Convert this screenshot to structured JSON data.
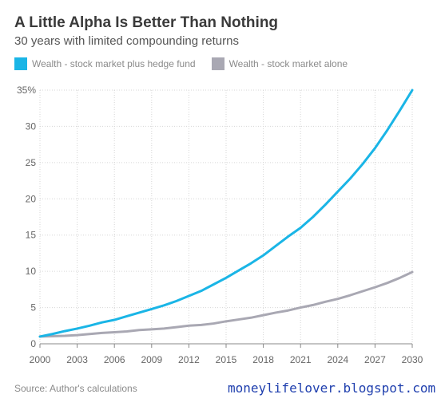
{
  "chart_data": {
    "type": "line",
    "title": "A Little Alpha Is Better Than Nothing",
    "subtitle": "30 years with limited compounding returns",
    "xlim": [
      2000,
      2030
    ],
    "ylim": [
      0,
      35
    ],
    "x_ticks": [
      "2000",
      "2003",
      "2006",
      "2009",
      "2012",
      "2015",
      "2018",
      "2021",
      "2024",
      "2027",
      "2030"
    ],
    "y_ticks": [
      "0",
      "5",
      "10",
      "15",
      "20",
      "25",
      "30",
      "35%"
    ],
    "grid": true,
    "legend_position": "top-left",
    "series": [
      {
        "name": "Wealth - stock market plus hedge fund",
        "color": "#1ab5e6",
        "x": [
          2000,
          2001,
          2002,
          2003,
          2004,
          2005,
          2006,
          2007,
          2008,
          2009,
          2010,
          2011,
          2012,
          2013,
          2014,
          2015,
          2016,
          2017,
          2018,
          2019,
          2020,
          2021,
          2022,
          2023,
          2024,
          2025,
          2026,
          2027,
          2028,
          2029,
          2030
        ],
        "values": [
          1.0,
          1.35,
          1.75,
          2.1,
          2.5,
          2.95,
          3.3,
          3.8,
          4.3,
          4.8,
          5.3,
          5.9,
          6.6,
          7.3,
          8.2,
          9.1,
          10.1,
          11.1,
          12.2,
          13.5,
          14.8,
          16.0,
          17.5,
          19.2,
          21.0,
          22.8,
          24.8,
          27.0,
          29.5,
          32.2,
          35.0
        ]
      },
      {
        "name": "Wealth - stock market alone",
        "color": "#a9a8b3",
        "x": [
          2000,
          2001,
          2002,
          2003,
          2004,
          2005,
          2006,
          2007,
          2008,
          2009,
          2010,
          2011,
          2012,
          2013,
          2014,
          2015,
          2016,
          2017,
          2018,
          2019,
          2020,
          2021,
          2022,
          2023,
          2024,
          2025,
          2026,
          2027,
          2028,
          2029,
          2030
        ],
        "values": [
          1.0,
          1.05,
          1.1,
          1.2,
          1.35,
          1.5,
          1.6,
          1.7,
          1.9,
          2.0,
          2.1,
          2.3,
          2.5,
          2.6,
          2.8,
          3.1,
          3.35,
          3.6,
          3.95,
          4.3,
          4.6,
          5.0,
          5.35,
          5.8,
          6.2,
          6.7,
          7.25,
          7.8,
          8.4,
          9.1,
          9.9
        ]
      }
    ]
  },
  "footer": {
    "source": "Source: Author's calculations",
    "watermark": "moneylifelover.blogspot.com"
  }
}
